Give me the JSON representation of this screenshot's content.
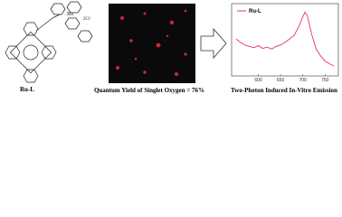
{
  "structure": {
    "label": "Ru-L",
    "metal": "Ru",
    "counterion": "2Cl⁻"
  },
  "captions": {
    "left": "Quantum Yield of Singlet Oxygen = 76%",
    "right": "Two-Photon Induced In-Vitro Emission"
  },
  "chart_data": {
    "type": "line",
    "x": [
      550,
      560,
      570,
      580,
      590,
      600,
      610,
      620,
      630,
      640,
      650,
      660,
      670,
      680,
      690,
      700,
      705,
      710,
      720,
      730,
      740,
      750,
      760,
      770
    ],
    "series": [
      {
        "name": "Ru-L",
        "color": "#e8336b",
        "values": [
          0.55,
          0.5,
          0.46,
          0.44,
          0.42,
          0.45,
          0.41,
          0.43,
          0.4,
          0.44,
          0.46,
          0.5,
          0.55,
          0.6,
          0.72,
          0.88,
          0.95,
          0.9,
          0.62,
          0.4,
          0.3,
          0.22,
          0.18,
          0.15
        ]
      }
    ],
    "xlim": [
      540,
      780
    ],
    "ylim": [
      0,
      1.05
    ],
    "xticks": [
      600,
      650,
      700,
      750
    ]
  }
}
